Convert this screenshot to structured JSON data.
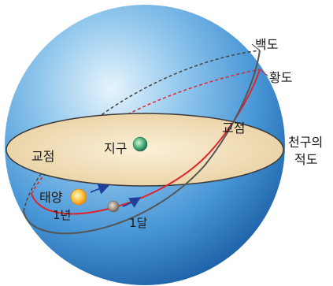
{
  "labels": {
    "moon_path": "백도",
    "ecliptic": "황도",
    "node_right": "교점",
    "node_left": "교점",
    "celestial_equator_line1": "천구의",
    "celestial_equator_line2": "적도",
    "earth": "지구",
    "sun": "태양",
    "sun_period": "1년",
    "moon_period": "1달"
  },
  "colors": {
    "sphere_light": "#d9eefa",
    "sphere_mid": "#5aa9e0",
    "sphere_dark": "#1c5fa6",
    "equator_plane": "#f1dcb4",
    "equator_edge": "#3a3a3a",
    "ecliptic": "#e0242b",
    "moon_path": "#444444",
    "sun": "#f7a823",
    "moon": "#9a8a78",
    "earth": "#3fa36a",
    "arrow": "#1f3f9a"
  },
  "icons": {
    "sun": "sun-icon",
    "earth": "earth-icon",
    "moon": "moon-icon"
  }
}
